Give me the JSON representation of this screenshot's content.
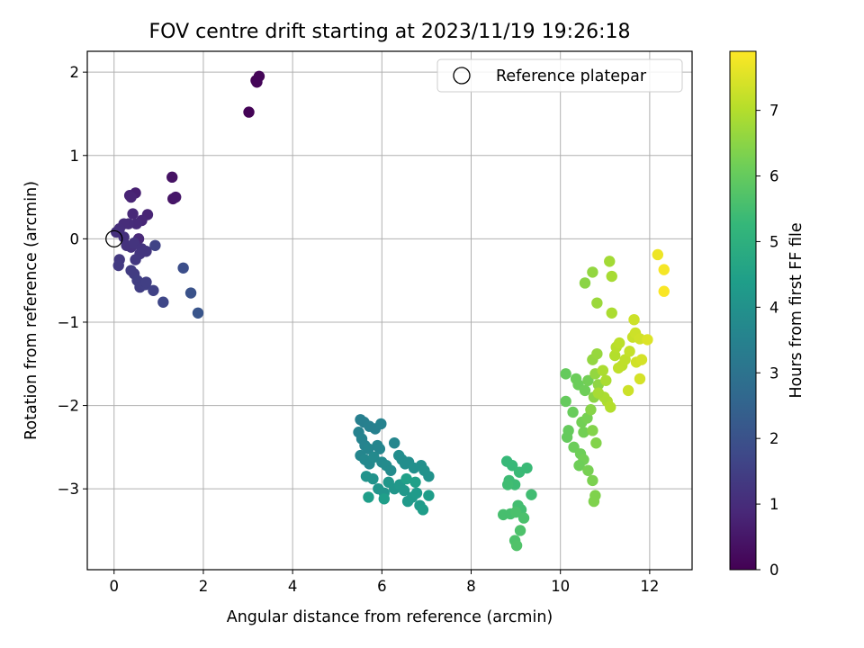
{
  "chart_data": {
    "type": "scatter",
    "title": "FOV centre drift starting at 2023/11/19 19:26:18",
    "xlabel": "Angular distance from reference (arcmin)",
    "ylabel": "Rotation from reference (arcmin)",
    "xlim": [
      -0.6,
      12.95
    ],
    "ylim": [
      -3.97,
      2.25
    ],
    "xticks": [
      0,
      2,
      4,
      6,
      8,
      10,
      12
    ],
    "yticks": [
      2,
      1,
      0,
      -1,
      -2,
      -3
    ],
    "ytick_labels": [
      "2",
      "1",
      "0",
      "−1",
      "−2",
      "−3"
    ],
    "grid": true,
    "legend": {
      "label": "Reference platepar",
      "placement": "top-right",
      "marker": "open-circle"
    },
    "reference_point": {
      "x": 0,
      "y": 0
    },
    "colorbar": {
      "label": "Hours from first FF file",
      "colormap": "viridis",
      "range": [
        0,
        7.9
      ],
      "ticks": [
        0,
        1,
        2,
        3,
        4,
        5,
        6,
        7
      ]
    },
    "colormap_stops": [
      "#440154",
      "#482878",
      "#3e4989",
      "#31688e",
      "#26828e",
      "#1f9e89",
      "#35b779",
      "#6ece58",
      "#b5de2b",
      "#fde725"
    ],
    "points": [
      {
        "x": 3.02,
        "y": 1.52,
        "c": 0.05
      },
      {
        "x": 3.18,
        "y": 1.9,
        "c": 0.05
      },
      {
        "x": 3.25,
        "y": 1.95,
        "c": 0.08
      },
      {
        "x": 3.2,
        "y": 1.88,
        "c": 0.1
      },
      {
        "x": 1.3,
        "y": 0.74,
        "c": 0.4
      },
      {
        "x": 1.32,
        "y": 0.48,
        "c": 0.45
      },
      {
        "x": 1.38,
        "y": 0.5,
        "c": 0.5
      },
      {
        "x": 0.48,
        "y": 0.55,
        "c": 0.7
      },
      {
        "x": 0.35,
        "y": 0.52,
        "c": 0.75
      },
      {
        "x": 0.38,
        "y": 0.5,
        "c": 0.8
      },
      {
        "x": 0.75,
        "y": 0.29,
        "c": 0.8
      },
      {
        "x": 0.62,
        "y": 0.22,
        "c": 0.85
      },
      {
        "x": 0.42,
        "y": 0.3,
        "c": 0.9
      },
      {
        "x": 0.55,
        "y": 0.0,
        "c": 0.9
      },
      {
        "x": 0.5,
        "y": 0.18,
        "c": 0.95
      },
      {
        "x": 0.32,
        "y": 0.18,
        "c": 1.0
      },
      {
        "x": 0.22,
        "y": 0.18,
        "c": 1.0
      },
      {
        "x": 0.12,
        "y": 0.12,
        "c": 1.05
      },
      {
        "x": 0.05,
        "y": 0.08,
        "c": 1.1
      },
      {
        "x": 0.22,
        "y": 0.02,
        "c": 1.1
      },
      {
        "x": 0.28,
        "y": -0.08,
        "c": 1.15
      },
      {
        "x": 0.38,
        "y": -0.1,
        "c": 1.15
      },
      {
        "x": 0.45,
        "y": -0.05,
        "c": 1.2
      },
      {
        "x": 0.62,
        "y": -0.12,
        "c": 1.2
      },
      {
        "x": 0.72,
        "y": -0.15,
        "c": 1.25
      },
      {
        "x": 0.58,
        "y": -0.18,
        "c": 1.25
      },
      {
        "x": 0.48,
        "y": -0.25,
        "c": 1.3
      },
      {
        "x": 0.12,
        "y": -0.25,
        "c": 1.3
      },
      {
        "x": 0.1,
        "y": -0.32,
        "c": 1.35
      },
      {
        "x": 0.38,
        "y": -0.38,
        "c": 1.4
      },
      {
        "x": 0.45,
        "y": -0.42,
        "c": 1.4
      },
      {
        "x": 0.52,
        "y": -0.5,
        "c": 1.45
      },
      {
        "x": 0.58,
        "y": -0.58,
        "c": 1.45
      },
      {
        "x": 0.7,
        "y": -0.55,
        "c": 1.5
      },
      {
        "x": 0.72,
        "y": -0.52,
        "c": 1.5
      },
      {
        "x": 0.88,
        "y": -0.62,
        "c": 1.55
      },
      {
        "x": 0.92,
        "y": -0.08,
        "c": 1.6
      },
      {
        "x": 1.1,
        "y": -0.76,
        "c": 1.7
      },
      {
        "x": 1.55,
        "y": -0.35,
        "c": 1.9
      },
      {
        "x": 1.72,
        "y": -0.65,
        "c": 2.0
      },
      {
        "x": 1.88,
        "y": -0.89,
        "c": 2.1
      },
      {
        "x": 5.52,
        "y": -2.17,
        "c": 3.4
      },
      {
        "x": 5.6,
        "y": -2.2,
        "c": 3.4
      },
      {
        "x": 5.72,
        "y": -2.25,
        "c": 3.45
      },
      {
        "x": 5.85,
        "y": -2.28,
        "c": 3.45
      },
      {
        "x": 5.98,
        "y": -2.22,
        "c": 3.5
      },
      {
        "x": 5.48,
        "y": -2.32,
        "c": 3.5
      },
      {
        "x": 5.55,
        "y": -2.4,
        "c": 3.55
      },
      {
        "x": 5.62,
        "y": -2.48,
        "c": 3.55
      },
      {
        "x": 5.7,
        "y": -2.52,
        "c": 3.6
      },
      {
        "x": 5.9,
        "y": -2.48,
        "c": 3.6
      },
      {
        "x": 5.95,
        "y": -2.52,
        "c": 3.6
      },
      {
        "x": 6.28,
        "y": -2.45,
        "c": 3.65
      },
      {
        "x": 5.52,
        "y": -2.6,
        "c": 3.65
      },
      {
        "x": 5.62,
        "y": -2.65,
        "c": 3.7
      },
      {
        "x": 5.72,
        "y": -2.7,
        "c": 3.7
      },
      {
        "x": 5.82,
        "y": -2.62,
        "c": 3.75
      },
      {
        "x": 6.0,
        "y": -2.68,
        "c": 3.75
      },
      {
        "x": 6.1,
        "y": -2.72,
        "c": 3.8
      },
      {
        "x": 6.2,
        "y": -2.78,
        "c": 3.8
      },
      {
        "x": 6.38,
        "y": -2.6,
        "c": 3.85
      },
      {
        "x": 6.45,
        "y": -2.65,
        "c": 3.85
      },
      {
        "x": 6.52,
        "y": -2.7,
        "c": 3.9
      },
      {
        "x": 6.6,
        "y": -2.68,
        "c": 3.9
      },
      {
        "x": 6.72,
        "y": -2.75,
        "c": 3.95
      },
      {
        "x": 6.88,
        "y": -2.72,
        "c": 3.95
      },
      {
        "x": 6.95,
        "y": -2.78,
        "c": 4.0
      },
      {
        "x": 7.05,
        "y": -2.85,
        "c": 4.0
      },
      {
        "x": 5.65,
        "y": -2.85,
        "c": 4.05
      },
      {
        "x": 5.8,
        "y": -2.88,
        "c": 4.05
      },
      {
        "x": 5.92,
        "y": -3.0,
        "c": 4.1
      },
      {
        "x": 6.05,
        "y": -3.05,
        "c": 4.1
      },
      {
        "x": 6.15,
        "y": -2.92,
        "c": 4.15
      },
      {
        "x": 6.28,
        "y": -3.0,
        "c": 4.15
      },
      {
        "x": 6.4,
        "y": -2.95,
        "c": 4.2
      },
      {
        "x": 6.5,
        "y": -3.02,
        "c": 4.2
      },
      {
        "x": 6.58,
        "y": -3.15,
        "c": 4.25
      },
      {
        "x": 6.68,
        "y": -3.1,
        "c": 4.25
      },
      {
        "x": 6.78,
        "y": -3.05,
        "c": 4.3
      },
      {
        "x": 6.85,
        "y": -3.2,
        "c": 4.3
      },
      {
        "x": 6.92,
        "y": -3.25,
        "c": 4.35
      },
      {
        "x": 7.05,
        "y": -3.08,
        "c": 4.35
      },
      {
        "x": 5.7,
        "y": -3.1,
        "c": 4.4
      },
      {
        "x": 6.05,
        "y": -3.12,
        "c": 4.4
      },
      {
        "x": 6.55,
        "y": -2.88,
        "c": 4.45
      },
      {
        "x": 6.75,
        "y": -2.92,
        "c": 4.45
      },
      {
        "x": 8.8,
        "y": -2.67,
        "c": 5.3
      },
      {
        "x": 8.92,
        "y": -2.72,
        "c": 5.3
      },
      {
        "x": 9.08,
        "y": -2.8,
        "c": 5.35
      },
      {
        "x": 9.25,
        "y": -2.75,
        "c": 5.35
      },
      {
        "x": 8.85,
        "y": -2.9,
        "c": 5.4
      },
      {
        "x": 8.98,
        "y": -2.95,
        "c": 5.4
      },
      {
        "x": 8.82,
        "y": -2.95,
        "c": 5.45
      },
      {
        "x": 9.35,
        "y": -3.07,
        "c": 5.45
      },
      {
        "x": 9.05,
        "y": -3.2,
        "c": 5.5
      },
      {
        "x": 9.12,
        "y": -3.25,
        "c": 5.5
      },
      {
        "x": 8.72,
        "y": -3.31,
        "c": 5.55
      },
      {
        "x": 8.88,
        "y": -3.3,
        "c": 5.55
      },
      {
        "x": 9.0,
        "y": -3.28,
        "c": 5.6
      },
      {
        "x": 9.18,
        "y": -3.35,
        "c": 5.6
      },
      {
        "x": 9.1,
        "y": -3.5,
        "c": 5.65
      },
      {
        "x": 8.98,
        "y": -3.62,
        "c": 5.65
      },
      {
        "x": 9.02,
        "y": -3.68,
        "c": 5.7
      },
      {
        "x": 10.12,
        "y": -1.62,
        "c": 6.0
      },
      {
        "x": 10.35,
        "y": -1.68,
        "c": 6.1
      },
      {
        "x": 10.4,
        "y": -1.75,
        "c": 6.1
      },
      {
        "x": 10.55,
        "y": -1.82,
        "c": 6.15
      },
      {
        "x": 10.62,
        "y": -1.7,
        "c": 6.2
      },
      {
        "x": 10.12,
        "y": -1.95,
        "c": 6.0
      },
      {
        "x": 10.28,
        "y": -2.08,
        "c": 6.05
      },
      {
        "x": 10.48,
        "y": -2.2,
        "c": 6.2
      },
      {
        "x": 10.6,
        "y": -2.15,
        "c": 6.25
      },
      {
        "x": 10.18,
        "y": -2.3,
        "c": 6.0
      },
      {
        "x": 10.15,
        "y": -2.38,
        "c": 6.0
      },
      {
        "x": 10.52,
        "y": -2.32,
        "c": 6.2
      },
      {
        "x": 10.3,
        "y": -2.5,
        "c": 6.1
      },
      {
        "x": 10.45,
        "y": -2.58,
        "c": 6.15
      },
      {
        "x": 10.52,
        "y": -2.65,
        "c": 6.2
      },
      {
        "x": 10.42,
        "y": -2.72,
        "c": 6.15
      },
      {
        "x": 10.62,
        "y": -2.78,
        "c": 6.25
      },
      {
        "x": 10.72,
        "y": -2.9,
        "c": 6.3
      },
      {
        "x": 10.78,
        "y": -3.08,
        "c": 6.35
      },
      {
        "x": 10.75,
        "y": -3.15,
        "c": 6.35
      },
      {
        "x": 10.8,
        "y": -2.45,
        "c": 6.4
      },
      {
        "x": 10.72,
        "y": -2.3,
        "c": 6.4
      },
      {
        "x": 10.68,
        "y": -2.05,
        "c": 6.45
      },
      {
        "x": 10.75,
        "y": -1.9,
        "c": 6.5
      },
      {
        "x": 10.85,
        "y": -1.75,
        "c": 6.55
      },
      {
        "x": 10.78,
        "y": -1.62,
        "c": 6.6
      },
      {
        "x": 10.72,
        "y": -1.45,
        "c": 6.6
      },
      {
        "x": 10.82,
        "y": -1.38,
        "c": 6.65
      },
      {
        "x": 10.55,
        "y": -0.53,
        "c": 6.5
      },
      {
        "x": 10.72,
        "y": -0.4,
        "c": 6.6
      },
      {
        "x": 10.82,
        "y": -0.77,
        "c": 6.7
      },
      {
        "x": 11.1,
        "y": -0.27,
        "c": 6.8
      },
      {
        "x": 11.15,
        "y": -0.45,
        "c": 6.85
      },
      {
        "x": 11.15,
        "y": -0.89,
        "c": 6.9
      },
      {
        "x": 11.02,
        "y": -1.7,
        "c": 6.9
      },
      {
        "x": 11.05,
        "y": -1.95,
        "c": 6.95
      },
      {
        "x": 11.12,
        "y": -2.02,
        "c": 7.0
      },
      {
        "x": 10.98,
        "y": -1.9,
        "c": 6.9
      },
      {
        "x": 10.85,
        "y": -1.85,
        "c": 6.85
      },
      {
        "x": 10.95,
        "y": -1.58,
        "c": 6.9
      },
      {
        "x": 11.22,
        "y": -1.4,
        "c": 7.0
      },
      {
        "x": 11.25,
        "y": -1.3,
        "c": 7.05
      },
      {
        "x": 11.32,
        "y": -1.25,
        "c": 7.1
      },
      {
        "x": 11.38,
        "y": -1.52,
        "c": 7.1
      },
      {
        "x": 11.45,
        "y": -1.45,
        "c": 7.15
      },
      {
        "x": 11.3,
        "y": -1.55,
        "c": 7.15
      },
      {
        "x": 11.55,
        "y": -1.35,
        "c": 7.2
      },
      {
        "x": 11.62,
        "y": -1.18,
        "c": 7.25
      },
      {
        "x": 11.68,
        "y": -1.13,
        "c": 7.3
      },
      {
        "x": 11.65,
        "y": -0.97,
        "c": 7.3
      },
      {
        "x": 11.78,
        "y": -1.2,
        "c": 7.35
      },
      {
        "x": 11.7,
        "y": -1.48,
        "c": 7.35
      },
      {
        "x": 11.82,
        "y": -1.45,
        "c": 7.4
      },
      {
        "x": 11.78,
        "y": -1.68,
        "c": 7.4
      },
      {
        "x": 11.52,
        "y": -1.82,
        "c": 7.3
      },
      {
        "x": 11.95,
        "y": -1.21,
        "c": 7.5
      },
      {
        "x": 12.18,
        "y": -0.19,
        "c": 7.7
      },
      {
        "x": 12.32,
        "y": -0.37,
        "c": 7.8
      },
      {
        "x": 12.32,
        "y": -0.63,
        "c": 7.85
      }
    ]
  }
}
